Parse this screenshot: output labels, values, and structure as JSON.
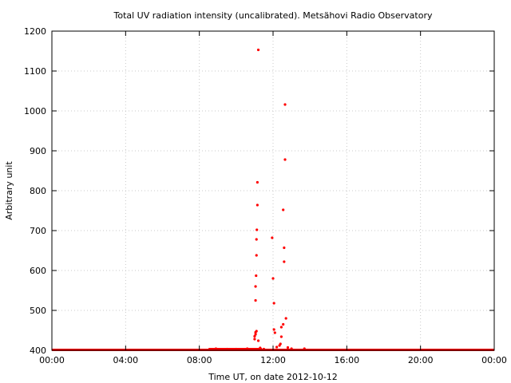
{
  "chart_data": {
    "type": "scatter",
    "title": "Total UV radiation intensity (uncalibrated). Metsähovi Radio Observatory",
    "xlabel": "Time UT, on date 2012-10-12",
    "ylabel": "Arbitrary unit",
    "xlim": [
      0,
      24
    ],
    "ylim": [
      400,
      1200
    ],
    "x_ticks": [
      {
        "value": 0,
        "label": "00:00"
      },
      {
        "value": 4,
        "label": "04:00"
      },
      {
        "value": 8,
        "label": "08:00"
      },
      {
        "value": 12,
        "label": "12:00"
      },
      {
        "value": 16,
        "label": "16:00"
      },
      {
        "value": 20,
        "label": "20:00"
      },
      {
        "value": 24,
        "label": "00:00"
      }
    ],
    "y_ticks": [
      400,
      500,
      600,
      700,
      800,
      900,
      1000,
      1100,
      1200
    ],
    "grid": true,
    "color": "#ff0000",
    "baseline": {
      "value": 401,
      "x_start": 0,
      "x_end": 24
    },
    "series": [
      {
        "points": [
          [
            8.9,
            404
          ],
          [
            9.5,
            403
          ],
          [
            10.0,
            403
          ],
          [
            10.3,
            402
          ],
          [
            10.6,
            404
          ],
          [
            11.0,
            428
          ],
          [
            11.0,
            435
          ],
          [
            11.05,
            440
          ],
          [
            11.05,
            445
          ],
          [
            11.1,
            448
          ],
          [
            11.05,
            525
          ],
          [
            11.05,
            560
          ],
          [
            11.08,
            587
          ],
          [
            11.1,
            638
          ],
          [
            11.1,
            678
          ],
          [
            11.12,
            702
          ],
          [
            11.15,
            764
          ],
          [
            11.15,
            821
          ],
          [
            11.2,
            1153
          ],
          [
            11.2,
            424
          ],
          [
            11.3,
            406
          ],
          [
            11.5,
            403
          ],
          [
            11.95,
            682
          ],
          [
            12.0,
            580
          ],
          [
            12.05,
            518
          ],
          [
            12.05,
            452
          ],
          [
            12.1,
            444
          ],
          [
            12.2,
            408
          ],
          [
            12.35,
            412
          ],
          [
            12.4,
            416
          ],
          [
            12.45,
            434
          ],
          [
            12.45,
            458
          ],
          [
            12.55,
            465
          ],
          [
            12.6,
            622
          ],
          [
            12.6,
            657
          ],
          [
            12.55,
            752
          ],
          [
            12.65,
            878
          ],
          [
            12.65,
            1016
          ],
          [
            12.7,
            480
          ],
          [
            12.8,
            407
          ],
          [
            13.0,
            404
          ],
          [
            13.7,
            404
          ]
        ]
      }
    ]
  }
}
